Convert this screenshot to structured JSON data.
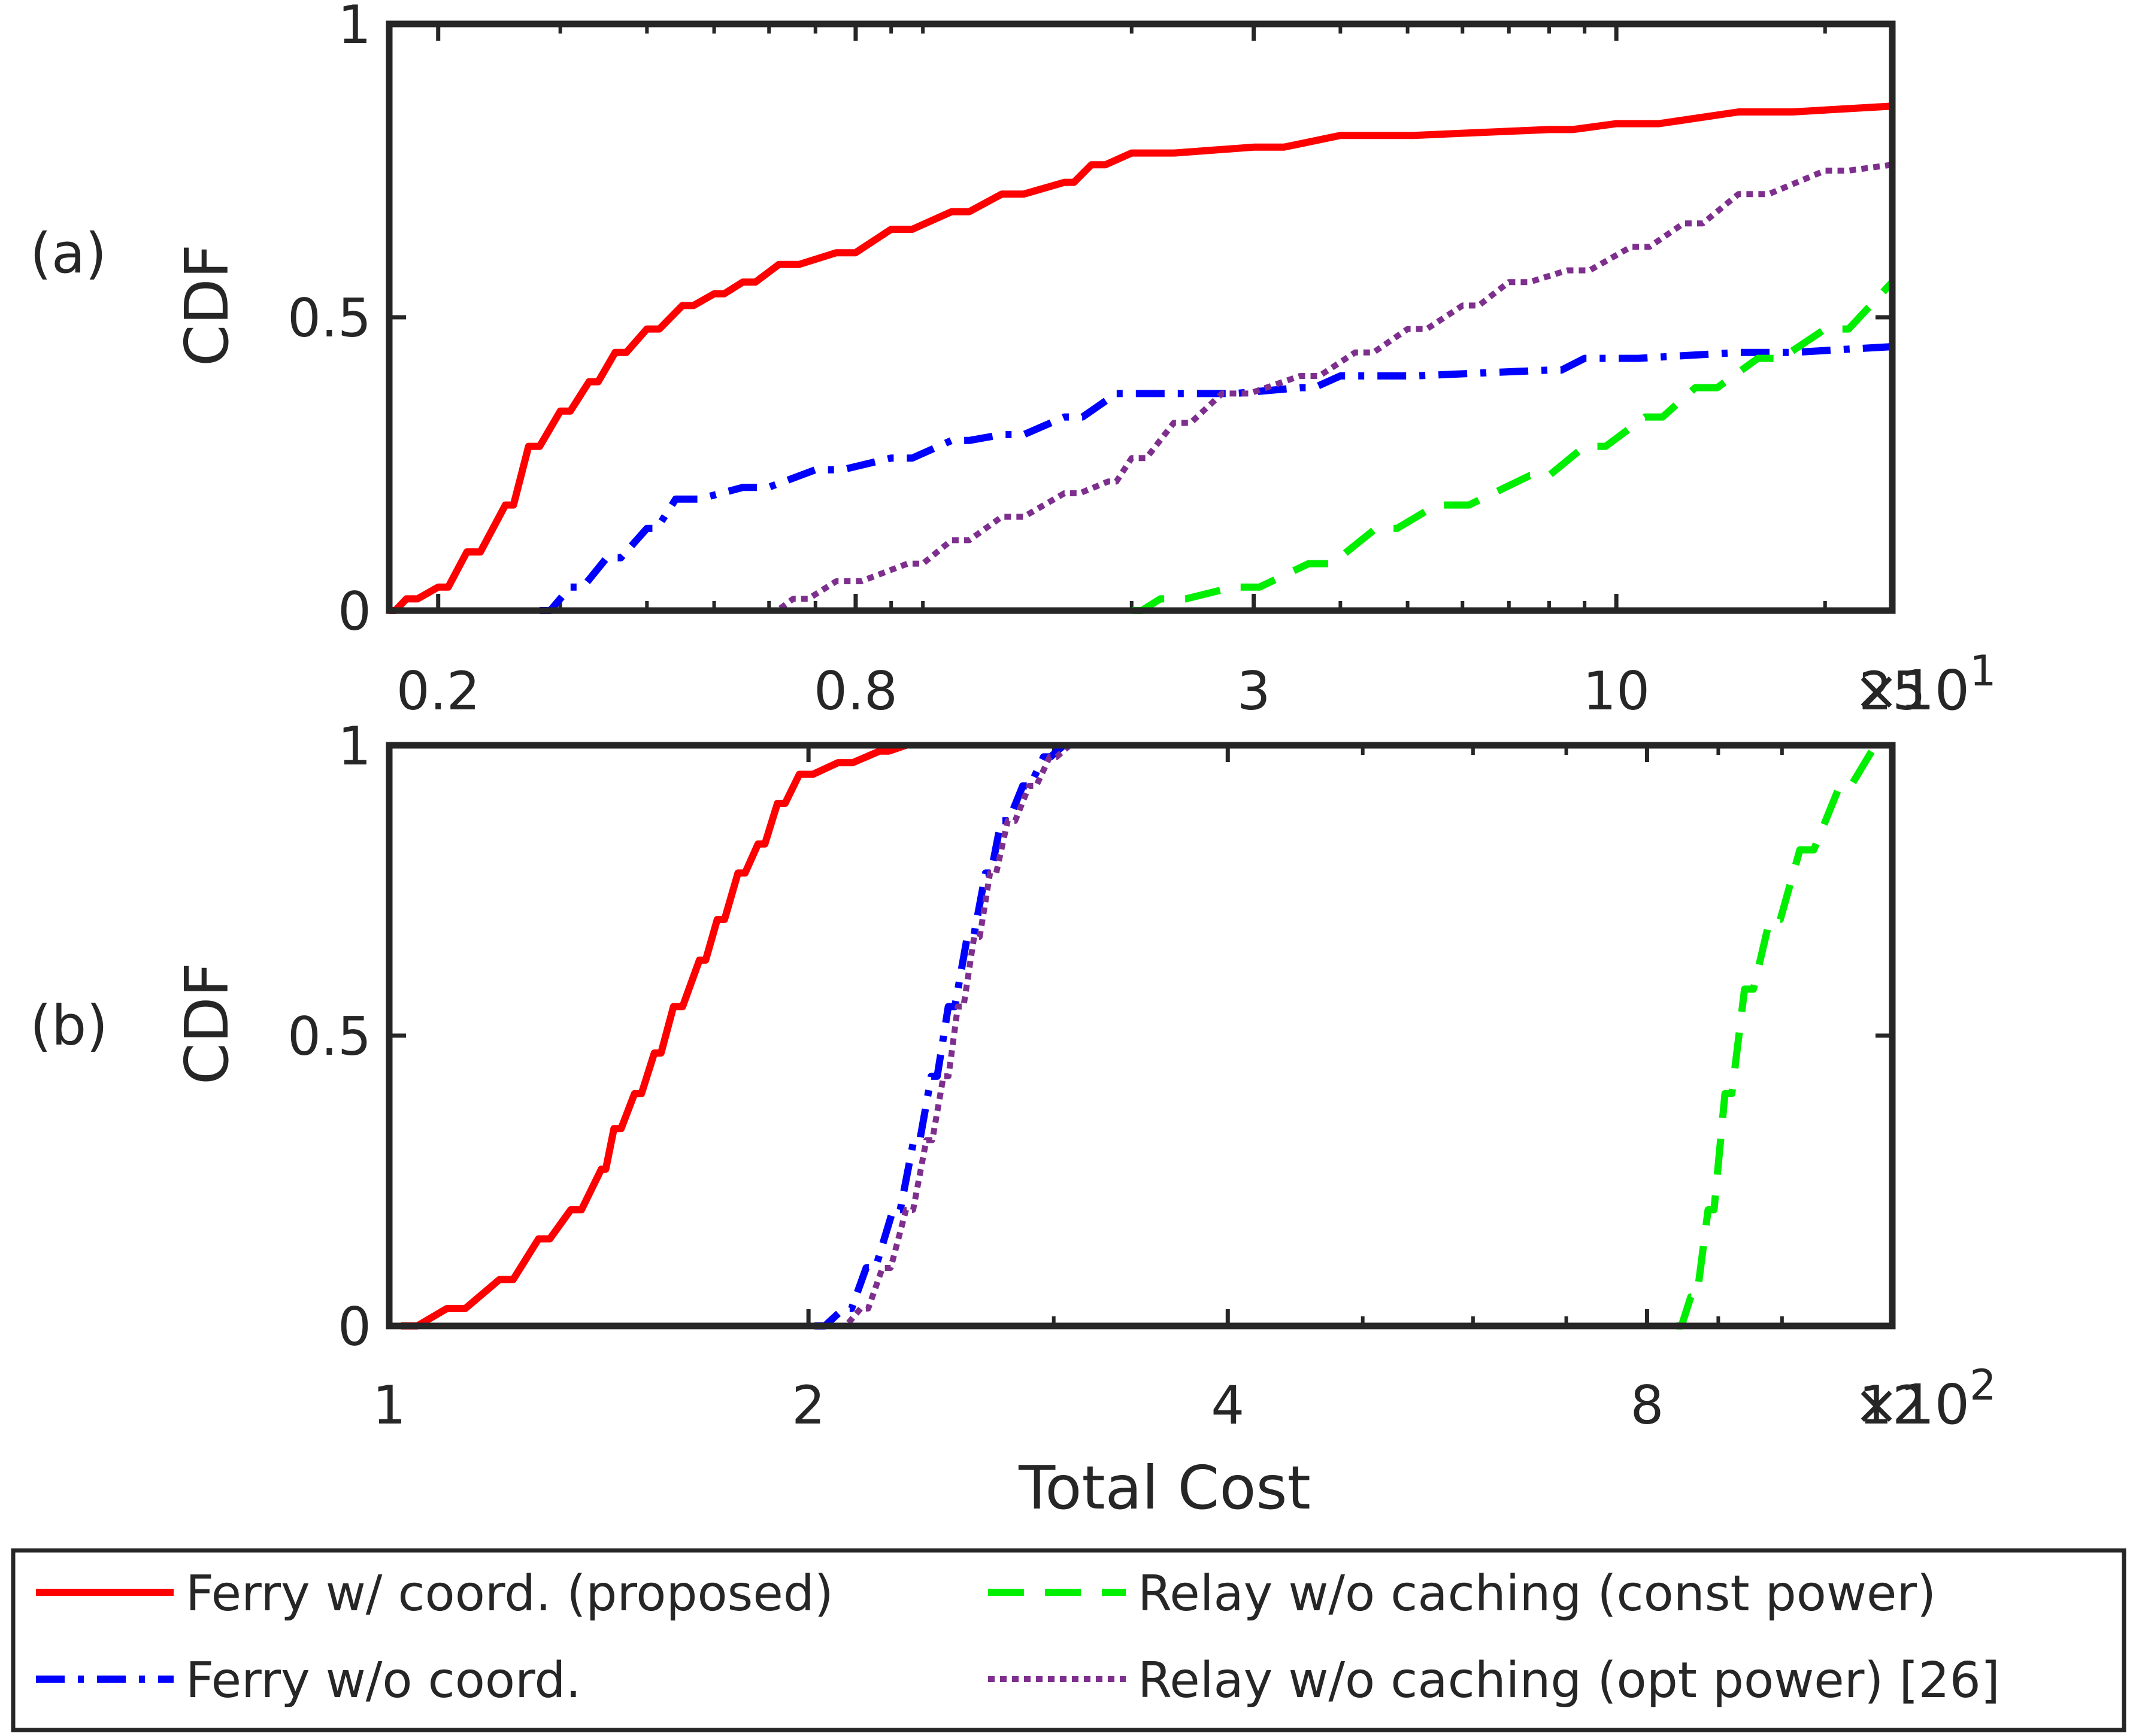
{
  "chart_data": [
    {
      "type": "line",
      "panel_label": "(a)",
      "ylabel": "CDF",
      "xscale": "log",
      "xlim": [
        0.17,
        25
      ],
      "ylim": [
        0,
        1
      ],
      "xticks": [
        0.2,
        0.8,
        3,
        10,
        25
      ],
      "xtick_labels": [
        "0.2",
        "0.8",
        "3",
        "10",
        "25"
      ],
      "yticks": [
        0,
        0.5,
        1
      ],
      "ytick_labels": [
        "0",
        "0.5",
        "1"
      ],
      "x_multiplier": {
        "base": "×10",
        "exp": "1"
      },
      "series": [
        {
          "name": "Ferry w/ coord. (proposed)",
          "color": "#ff0000",
          "dash": "solid",
          "points": [
            [
              0.17,
              0.0
            ],
            [
              0.18,
              0.02
            ],
            [
              0.2,
              0.04
            ],
            [
              0.22,
              0.1
            ],
            [
              0.25,
              0.18
            ],
            [
              0.27,
              0.28
            ],
            [
              0.3,
              0.34
            ],
            [
              0.33,
              0.39
            ],
            [
              0.36,
              0.44
            ],
            [
              0.4,
              0.48
            ],
            [
              0.45,
              0.52
            ],
            [
              0.5,
              0.54
            ],
            [
              0.55,
              0.56
            ],
            [
              0.62,
              0.59
            ],
            [
              0.75,
              0.61
            ],
            [
              0.9,
              0.65
            ],
            [
              1.1,
              0.68
            ],
            [
              1.3,
              0.71
            ],
            [
              1.6,
              0.73
            ],
            [
              1.75,
              0.76
            ],
            [
              2.0,
              0.78
            ],
            [
              3.0,
              0.79
            ],
            [
              4.0,
              0.81
            ],
            [
              8.0,
              0.82
            ],
            [
              10.0,
              0.83
            ],
            [
              15.0,
              0.85
            ],
            [
              25.0,
              0.86
            ]
          ]
        },
        {
          "name": "Ferry w/o coord.",
          "color": "#0000ff",
          "dash": "dashdot",
          "points": [
            [
              0.28,
              0.0
            ],
            [
              0.31,
              0.04
            ],
            [
              0.35,
              0.09
            ],
            [
              0.4,
              0.14
            ],
            [
              0.44,
              0.19
            ],
            [
              0.55,
              0.21
            ],
            [
              0.7,
              0.24
            ],
            [
              0.9,
              0.26
            ],
            [
              1.1,
              0.29
            ],
            [
              1.3,
              0.3
            ],
            [
              1.6,
              0.33
            ],
            [
              1.9,
              0.37
            ],
            [
              2.5,
              0.37
            ],
            [
              3.5,
              0.38
            ],
            [
              4.0,
              0.4
            ],
            [
              8.0,
              0.41
            ],
            [
              9.0,
              0.43
            ],
            [
              15.0,
              0.44
            ],
            [
              25.0,
              0.45
            ]
          ]
        },
        {
          "name": "Relay w/o caching (const power)",
          "color": "#00ee00",
          "dash": "dashed",
          "points": [
            [
              2.0,
              0.0
            ],
            [
              2.2,
              0.02
            ],
            [
              2.8,
              0.04
            ],
            [
              3.6,
              0.08
            ],
            [
              4.5,
              0.14
            ],
            [
              5.5,
              0.18
            ],
            [
              7.5,
              0.23
            ],
            [
              9.0,
              0.28
            ],
            [
              11.0,
              0.33
            ],
            [
              13.0,
              0.38
            ],
            [
              16.0,
              0.43
            ],
            [
              20.0,
              0.48
            ],
            [
              25.0,
              0.56
            ]
          ]
        },
        {
          "name": "Relay w/o caching (opt power) [26]",
          "color": "#7e2f8e",
          "dash": "dotted",
          "points": [
            [
              0.6,
              0.0
            ],
            [
              0.65,
              0.02
            ],
            [
              0.75,
              0.05
            ],
            [
              0.95,
              0.08
            ],
            [
              1.1,
              0.12
            ],
            [
              1.3,
              0.16
            ],
            [
              1.6,
              0.2
            ],
            [
              1.85,
              0.22
            ],
            [
              2.0,
              0.26
            ],
            [
              2.3,
              0.32
            ],
            [
              2.7,
              0.37
            ],
            [
              3.5,
              0.4
            ],
            [
              4.2,
              0.44
            ],
            [
              5.0,
              0.48
            ],
            [
              6.0,
              0.52
            ],
            [
              7.0,
              0.56
            ],
            [
              8.5,
              0.58
            ],
            [
              10.5,
              0.62
            ],
            [
              12.5,
              0.66
            ],
            [
              15.0,
              0.71
            ],
            [
              20.0,
              0.75
            ],
            [
              25.0,
              0.76
            ]
          ]
        }
      ]
    },
    {
      "type": "line",
      "panel_label": "(b)",
      "ylabel": "CDF",
      "xlabel": "Total Cost",
      "xscale": "log",
      "xlim": [
        1,
        12
      ],
      "ylim": [
        0,
        1
      ],
      "xticks": [
        1,
        2,
        4,
        8,
        12
      ],
      "xtick_labels": [
        "1",
        "2",
        "4",
        "8",
        "12"
      ],
      "yticks": [
        0,
        0.5,
        1
      ],
      "ytick_labels": [
        "0",
        "0.5",
        "1"
      ],
      "x_multiplier": {
        "base": "×10",
        "exp": "2"
      },
      "series": [
        {
          "name": "Ferry w/ coord. (proposed)",
          "color": "#ff0000",
          "dash": "solid",
          "points": [
            [
              1.02,
              0.0
            ],
            [
              1.1,
              0.03
            ],
            [
              1.2,
              0.08
            ],
            [
              1.28,
              0.15
            ],
            [
              1.35,
              0.2
            ],
            [
              1.42,
              0.27
            ],
            [
              1.45,
              0.34
            ],
            [
              1.5,
              0.4
            ],
            [
              1.55,
              0.47
            ],
            [
              1.6,
              0.55
            ],
            [
              1.67,
              0.63
            ],
            [
              1.72,
              0.7
            ],
            [
              1.78,
              0.78
            ],
            [
              1.84,
              0.83
            ],
            [
              1.9,
              0.9
            ],
            [
              1.97,
              0.95
            ],
            [
              2.1,
              0.97
            ],
            [
              2.25,
              0.99
            ],
            [
              2.35,
              1.0
            ]
          ]
        },
        {
          "name": "Ferry w/o coord.",
          "color": "#0000ff",
          "dash": "dashdot",
          "points": [
            [
              2.02,
              0.0
            ],
            [
              2.12,
              0.03
            ],
            [
              2.2,
              0.1
            ],
            [
              2.3,
              0.2
            ],
            [
              2.38,
              0.32
            ],
            [
              2.45,
              0.43
            ],
            [
              2.52,
              0.55
            ],
            [
              2.6,
              0.67
            ],
            [
              2.68,
              0.78
            ],
            [
              2.75,
              0.87
            ],
            [
              2.85,
              0.93
            ],
            [
              2.95,
              0.98
            ],
            [
              3.05,
              1.0
            ]
          ]
        },
        {
          "name": "Relay w/o caching (const power)",
          "color": "#00ee00",
          "dash": "dashed",
          "points": [
            [
              8.4,
              0.0
            ],
            [
              8.6,
              0.05
            ],
            [
              8.85,
              0.2
            ],
            [
              9.1,
              0.4
            ],
            [
              9.4,
              0.58
            ],
            [
              9.8,
              0.7
            ],
            [
              10.3,
              0.82
            ],
            [
              11.0,
              0.93
            ],
            [
              11.6,
              0.99
            ]
          ]
        },
        {
          "name": "Relay w/o caching (opt power) [26]",
          "color": "#7e2f8e",
          "dash": "dotted",
          "points": [
            [
              2.1,
              0.0
            ],
            [
              2.18,
              0.03
            ],
            [
              2.26,
              0.1
            ],
            [
              2.35,
              0.2
            ],
            [
              2.43,
              0.32
            ],
            [
              2.5,
              0.43
            ],
            [
              2.56,
              0.55
            ],
            [
              2.63,
              0.67
            ],
            [
              2.7,
              0.78
            ],
            [
              2.78,
              0.87
            ],
            [
              2.88,
              0.93
            ],
            [
              2.98,
              0.98
            ],
            [
              3.08,
              1.0
            ]
          ]
        }
      ]
    }
  ]
}
